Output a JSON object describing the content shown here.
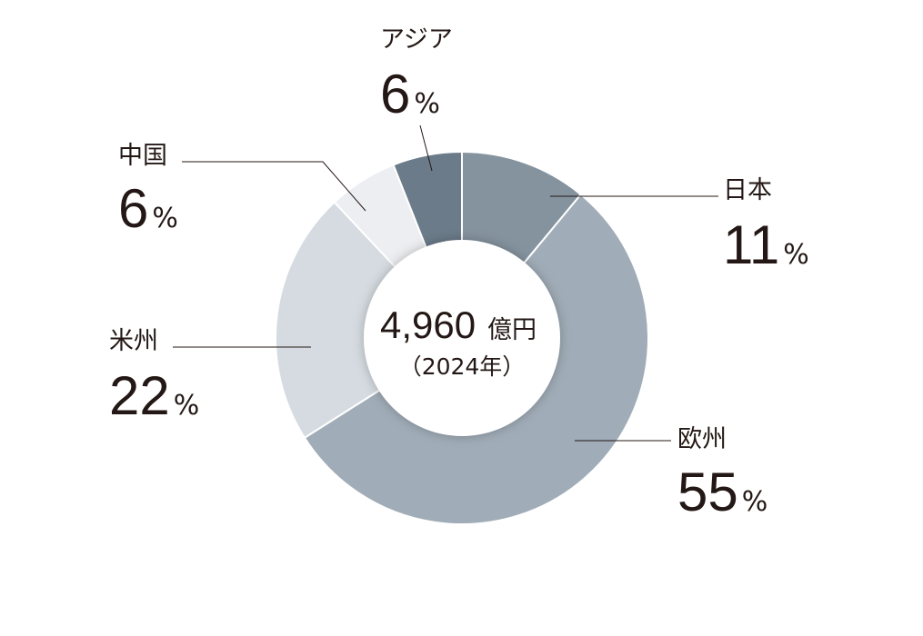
{
  "chart_data": {
    "type": "donut",
    "categories": [
      "日本",
      "欧州",
      "米州",
      "中国",
      "アジア"
    ],
    "values": [
      11,
      55,
      22,
      6,
      6
    ],
    "unit": "%",
    "colors": [
      "#85939f",
      "#a0acb7",
      "#d5dbe0",
      "#eceef1",
      "#6b7b89"
    ],
    "center_value": "4,960",
    "center_unit": "億円",
    "center_note": "（2024年）"
  }
}
